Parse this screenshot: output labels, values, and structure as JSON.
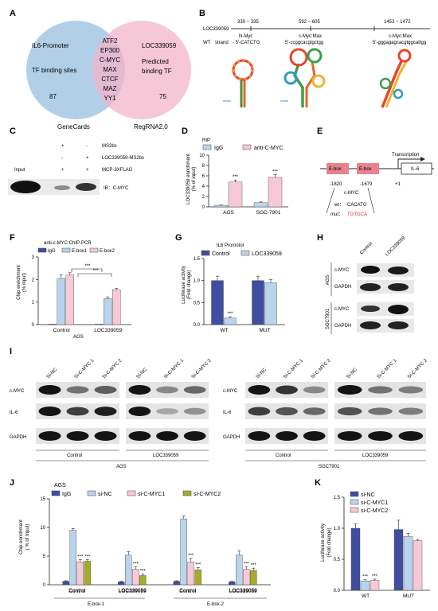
{
  "panels": [
    "A",
    "B",
    "C",
    "D",
    "E",
    "F",
    "G",
    "H",
    "I",
    "J",
    "K"
  ],
  "venn": {
    "left_title": [
      "IL6-Promoter",
      "TF binding sites"
    ],
    "left_count": "87",
    "left_source": "GeneCards",
    "overlap": [
      "ATF2",
      "EP300",
      "C-MYC",
      "MAX",
      "CTCF",
      "MAZ",
      "YY1"
    ],
    "right_title": [
      "LOC339059",
      "Predicted",
      "binding TF"
    ],
    "right_count": "75",
    "right_source": "RegRNA2.0",
    "left_color": "#a9cbe6",
    "right_color": "#f3b4c9"
  },
  "motif": {
    "gene": "LOC339059",
    "wt_label": "WT",
    "strand": "strand",
    "sites": [
      {
        "range": "330 ~ 335",
        "tf": "N-Myc",
        "seq": "- 5'-CATCTG"
      },
      {
        "range": "592 ~ 605",
        "tf": "c-Myc:Max",
        "seq": "5'-ccggcacgtgctgg"
      },
      {
        "range": "1453 ~ 1472",
        "tf": "c-Myc:Max",
        "seq": "5'-gggagagcacgtggcattgg"
      }
    ]
  },
  "blot_c": {
    "rows": [
      {
        "label": "MS2bs",
        "marks": [
          "+",
          "-"
        ]
      },
      {
        "label": "LOC339059-MS2bs",
        "marks": [
          "-",
          "+"
        ]
      },
      {
        "label": "MCP-3XFLAG",
        "marks": [
          "+",
          "+"
        ]
      }
    ],
    "input_label": "Input",
    "ib_label": "IB：C-MYC"
  },
  "panel_d": {
    "title": "RIP",
    "legend": [
      "IgG",
      "anti-C-MYC"
    ],
    "ylabel": [
      "LOC339059 enrichment",
      "(% of input)"
    ],
    "yticks": [
      "0",
      "2",
      "4",
      "6",
      "8",
      "10"
    ],
    "sig": "***"
  },
  "panel_e": {
    "transcription": "Transcription",
    "ebox": "E-box",
    "il6": "IL-6",
    "positions": [
      "-1820",
      "-1679",
      "+1"
    ],
    "tf": "c-MYC",
    "wt": "wt：",
    "wt_seq": "CACATG",
    "mut": "mut：",
    "mut_seq": "TGTGCA"
  },
  "panel_f": {
    "title": "anti-c-MYC ChIP-PCR",
    "legend": [
      "IgG",
      "E-box1",
      "E-box2"
    ],
    "ylabel": [
      "Chip enrichment",
      "(% input)"
    ],
    "yticks": [
      "0",
      "1",
      "2",
      "3"
    ],
    "xgroup": "AGS",
    "sig": "***"
  },
  "panel_g": {
    "title": "IL6 Promotor",
    "legend": [
      "Control",
      "LOC339059"
    ],
    "ylabel": [
      "Luciferase activity",
      "(Fold change)"
    ],
    "yticks": [
      "0.0",
      "0.5",
      "1.0",
      "1.5"
    ],
    "sig": "***"
  },
  "panel_h": {
    "lanes": [
      "Control",
      "LOC339059"
    ],
    "rows": [
      "c-MYC",
      "GAPDH",
      "c-MYC",
      "GAPDH"
    ],
    "cells": [
      "AGS",
      "SGC7901"
    ]
  },
  "panel_i": {
    "lanes": [
      "Si-NC",
      "Si-C-MYC 1",
      "Si-C-MYC 2"
    ],
    "rows": [
      "c-MYC",
      "IL-6",
      "GAPDH"
    ],
    "groups": [
      "Control",
      "LOC339059"
    ],
    "cells": [
      "AGS",
      "SGC7901"
    ]
  },
  "panel_j": {
    "title": "AGS",
    "legend": [
      "IgG",
      "si-NC",
      "si-C-MYC1",
      "si-C-MYC2"
    ],
    "ylabel": [
      "Chip enrichment",
      "( % of Input)"
    ],
    "yticks": [
      "0",
      "5",
      "10",
      "15"
    ],
    "groups": [
      "E-box-1",
      "E-box-2"
    ],
    "sig": "***"
  },
  "panel_k": {
    "legend": [
      "si-NC",
      "si-C-MYC1",
      "si-C-MYC2"
    ],
    "ylabel": [
      "Luciferase activity",
      "(Fold change)"
    ],
    "yticks": [
      "0.0",
      "0.5",
      "1.0",
      "1.5"
    ],
    "sig": "***"
  },
  "chart_data": [
    {
      "type": "bar",
      "panel": "D",
      "title": "RIP",
      "categories": [
        "AGS",
        "SGC-7901"
      ],
      "series": [
        {
          "name": "IgG",
          "values": [
            0.3,
            0.8
          ],
          "errors": [
            0.05,
            0.15
          ],
          "color": "#b9d4ec"
        },
        {
          "name": "anti-C-MYC",
          "values": [
            4.8,
            5.7
          ],
          "errors": [
            0.4,
            0.5
          ],
          "color": "#f7c9d7"
        }
      ],
      "ylabel": "LOC339059 enrichment (% of input)",
      "ylim": [
        0,
        10
      ]
    },
    {
      "type": "bar",
      "panel": "F",
      "title": "anti-c-MYC ChIP-PCR",
      "categories": [
        "Control",
        "LOC339059"
      ],
      "series": [
        {
          "name": "IgG",
          "values": [
            0.02,
            0.02
          ],
          "errors": [
            0,
            0
          ],
          "color": "#3f4ea0"
        },
        {
          "name": "E-box1",
          "values": [
            2.05,
            1.15
          ],
          "errors": [
            0.15,
            0.08
          ],
          "color": "#b9d4ec"
        },
        {
          "name": "E-box2",
          "values": [
            2.2,
            1.55
          ],
          "errors": [
            0.1,
            0.05
          ],
          "color": "#f7c9d7"
        }
      ],
      "ylabel": "Chip enrichment (% input)",
      "xlabel": "AGS",
      "ylim": [
        0,
        3
      ]
    },
    {
      "type": "bar",
      "panel": "G",
      "title": "IL6 Promotor",
      "categories": [
        "WT",
        "MUT"
      ],
      "series": [
        {
          "name": "Control",
          "values": [
            1.0,
            1.0
          ],
          "errors": [
            0.1,
            0.1
          ],
          "color": "#3f4ea0"
        },
        {
          "name": "LOC339059",
          "values": [
            0.15,
            0.95
          ],
          "errors": [
            0.03,
            0.07
          ],
          "color": "#b9d4ec"
        }
      ],
      "ylabel": "Luciferase activity (Fold change)",
      "ylim": [
        0,
        1.5
      ]
    },
    {
      "type": "bar",
      "panel": "J",
      "title": "AGS",
      "categories": [
        "Control",
        "LOC339059",
        "Control",
        "LOC339059"
      ],
      "series": [
        {
          "name": "IgG",
          "values": [
            0.6,
            0.5,
            0.6,
            0.5
          ],
          "errors": [
            0.1,
            0.1,
            0.1,
            0.1
          ],
          "color": "#3f4ea0"
        },
        {
          "name": "si-NC",
          "values": [
            9.5,
            5.2,
            11.5,
            5.2
          ],
          "errors": [
            0.3,
            0.6,
            0.5,
            0.7
          ],
          "color": "#b9d4ec"
        },
        {
          "name": "si-C-MYC1",
          "values": [
            4.0,
            2.7,
            4.0,
            2.7
          ],
          "errors": [
            0.4,
            0.4,
            0.6,
            0.4
          ],
          "color": "#f7c9d7"
        },
        {
          "name": "si-C-MYC2",
          "values": [
            4.1,
            1.6,
            2.6,
            2.5
          ],
          "errors": [
            0.3,
            0.3,
            0.4,
            0.4
          ],
          "color": "#a6ab2a"
        }
      ],
      "xlabel": "E-box-1 / E-box-2",
      "ylabel": "Chip enrichment (% of Input)",
      "ylim": [
        0,
        15
      ]
    },
    {
      "type": "bar",
      "panel": "K",
      "categories": [
        "WT",
        "MUT"
      ],
      "series": [
        {
          "name": "si-NC",
          "values": [
            1.0,
            0.98
          ],
          "errors": [
            0.07,
            0.15
          ],
          "color": "#3f4ea0"
        },
        {
          "name": "si-C-MYC1",
          "values": [
            0.15,
            0.87
          ],
          "errors": [
            0.02,
            0.05
          ],
          "color": "#b9d4ec"
        },
        {
          "name": "si-C-MYC2",
          "values": [
            0.16,
            0.8
          ],
          "errors": [
            0.02,
            0.02
          ],
          "color": "#f7c9d7"
        }
      ],
      "ylabel": "Luciferase activity (Fold change)",
      "ylim": [
        0,
        1.5
      ]
    }
  ]
}
